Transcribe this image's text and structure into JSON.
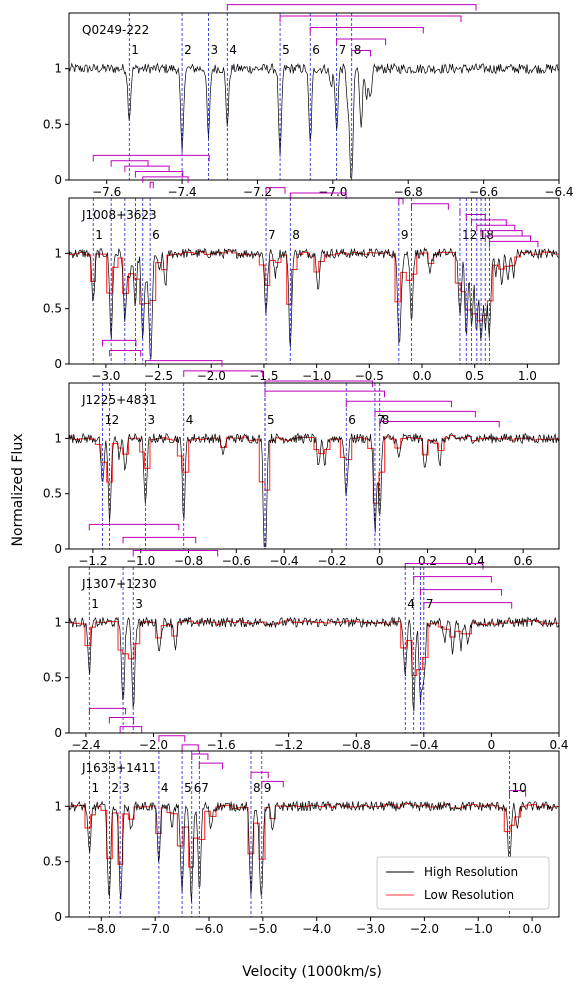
{
  "figure": {
    "ylabel": "Normalized Flux",
    "xlabel": "Velocity (1000km/s)",
    "colors": {
      "high": "#000000",
      "low": "#ff3333",
      "marker": "#1f1fd6",
      "bracket": "#bf00bf"
    }
  },
  "legend": {
    "position": "lower-right",
    "entries": [
      "High Resolution",
      "Low Resolution"
    ]
  },
  "chart_data": [
    {
      "type": "line",
      "title": "Q0249-222",
      "xlim": [
        -7.7,
        -6.4
      ],
      "ylim": [
        0,
        1.5
      ],
      "xticks": [
        -7.6,
        -7.4,
        -7.2,
        -7.0,
        -6.8,
        -6.6,
        -6.4
      ],
      "xtick_labels": [
        "−7.6",
        "−7.4",
        "−7.2",
        "−7.0",
        "−6.8",
        "−6.6",
        "−6.4"
      ],
      "yticks": [
        0,
        0.5,
        1
      ],
      "ytick_labels": [
        "0",
        "0.5",
        "1"
      ],
      "low_resolution": false,
      "systems": [
        {
          "label": "1",
          "x": -7.54,
          "end": -6.47
        },
        {
          "label": "2",
          "x": -7.4,
          "end": -6.52
        },
        {
          "label": "3",
          "x": -7.33,
          "end": -6.58
        },
        {
          "label": "4",
          "x": -7.28,
          "end": -6.62
        },
        {
          "label": "5",
          "x": -7.14,
          "end": -6.66
        },
        {
          "label": "6",
          "x": -7.06,
          "end": -6.76
        },
        {
          "label": "7",
          "x": -6.99,
          "end": -6.86
        },
        {
          "label": "8",
          "x": -6.95,
          "end": -6.9
        }
      ]
    },
    {
      "type": "line",
      "title": "J1008+3623",
      "xlim": [
        -3.35,
        1.3
      ],
      "ylim": [
        0,
        1.5
      ],
      "xticks": [
        -3.0,
        -2.5,
        -2.0,
        -1.5,
        -1.0,
        -0.5,
        0.0,
        0.5,
        1.0
      ],
      "xtick_labels": [
        "−3.0",
        "−2.5",
        "−2.0",
        "−1.5",
        "−1.0",
        "−0.5",
        "0.0",
        "0.5",
        "1.0"
      ],
      "yticks": [
        0,
        0.5,
        1
      ],
      "ytick_labels": [
        "0",
        "0.5",
        "1"
      ],
      "low_resolution": true,
      "systems": [
        {
          "label": "1",
          "x": -3.12,
          "end": -2.02
        },
        {
          "label": "",
          "x": -2.95,
          "end": -2.6
        },
        {
          "label": "",
          "x": -2.82,
          "end": -2.4
        },
        {
          "label": "",
          "x": -2.72,
          "end": -2.27
        },
        {
          "label": "",
          "x": -2.65,
          "end": -2.22
        },
        {
          "label": "6",
          "x": -2.58,
          "end": -2.55
        },
        {
          "label": "7",
          "x": -1.48,
          "end": -1.3
        },
        {
          "label": "8",
          "x": -1.25,
          "end": -0.72
        },
        {
          "label": "9",
          "x": -0.22,
          "end": -0.18
        },
        {
          "label": "",
          "x": -0.1,
          "end": 0.25
        },
        {
          "label": "12",
          "x": 0.36,
          "end": 0.36
        },
        {
          "label": "",
          "x": 0.42,
          "end": 0.6
        },
        {
          "label": "",
          "x": 0.47,
          "end": 0.8
        },
        {
          "label": "18",
          "x": 0.52,
          "end": 0.88
        },
        {
          "label": "",
          "x": 0.56,
          "end": 0.95
        },
        {
          "label": "",
          "x": 0.6,
          "end": 1.03
        },
        {
          "label": "",
          "x": 0.64,
          "end": 1.1
        }
      ]
    },
    {
      "type": "line",
      "title": "J1225+4831",
      "xlim": [
        -1.3,
        0.75
      ],
      "ylim": [
        0,
        1.5
      ],
      "xticks": [
        -1.2,
        -1.0,
        -0.8,
        -0.6,
        -0.4,
        -0.2,
        0,
        0.2,
        0.4,
        0.6
      ],
      "xtick_labels": [
        "−1.2",
        "−1.0",
        "−0.8",
        "−0.6",
        "−0.4",
        "−0.2",
        "0",
        "0.2",
        "0.4",
        "0.6"
      ],
      "yticks": [
        0,
        0.5,
        1
      ],
      "ytick_labels": [
        "0",
        "0.5",
        "1"
      ],
      "low_resolution": true,
      "systems": [
        {
          "label": "1",
          "x": -1.16,
          "end": -1.02
        },
        {
          "label": "2",
          "x": -1.13,
          "end": -1.0
        },
        {
          "label": "3",
          "x": -0.98,
          "end": -0.66
        },
        {
          "label": "4",
          "x": -0.82,
          "end": -0.49
        },
        {
          "label": "5",
          "x": -0.48,
          "end": -0.03
        },
        {
          "label": "",
          "x": -0.48,
          "end": 0.02
        },
        {
          "label": "6",
          "x": -0.14,
          "end": 0.3
        },
        {
          "label": "7",
          "x": -0.02,
          "end": 0.4
        },
        {
          "label": "8",
          "x": 0.0,
          "end": 0.5
        }
      ]
    },
    {
      "type": "line",
      "title": "J1307+1230",
      "xlim": [
        -2.5,
        0.4
      ],
      "ylim": [
        0,
        1.5
      ],
      "xticks": [
        -2.4,
        -2.0,
        -1.6,
        -1.2,
        -0.8,
        -0.4,
        0,
        0.4
      ],
      "xtick_labels": [
        "−2.4",
        "−2.0",
        "−1.6",
        "−1.2",
        "−0.8",
        "−0.4",
        "0",
        "0.4"
      ],
      "yticks": [
        0,
        0.5,
        1
      ],
      "ytick_labels": [
        "0",
        "0.5",
        "1"
      ],
      "low_resolution": true,
      "systems": [
        {
          "label": "1",
          "x": -2.38,
          "end": -1.85
        },
        {
          "label": "",
          "x": -2.18,
          "end": -1.75
        },
        {
          "label": "3",
          "x": -2.12,
          "end": -1.62
        },
        {
          "label": "4",
          "x": -0.51,
          "end": -0.05
        },
        {
          "label": "",
          "x": -0.46,
          "end": 0.0
        },
        {
          "label": "",
          "x": -0.42,
          "end": 0.06
        },
        {
          "label": "7",
          "x": -0.4,
          "end": 0.12
        }
      ]
    },
    {
      "type": "line",
      "title": "J1633+1411",
      "xlim": [
        -8.6,
        0.5
      ],
      "ylim": [
        0,
        1.5
      ],
      "xticks": [
        -8.0,
        -7.0,
        -6.0,
        -5.0,
        -4.0,
        -3.0,
        -2.0,
        -1.0,
        0.0
      ],
      "xtick_labels": [
        "−8.0",
        "−7.0",
        "−6.0",
        "−5.0",
        "−4.0",
        "−3.0",
        "−2.0",
        "−1.0",
        "0.0"
      ],
      "yticks": [
        0,
        0.5,
        1
      ],
      "ytick_labels": [
        "0",
        "0.5",
        "1"
      ],
      "low_resolution": true,
      "systems": [
        {
          "label": "1",
          "x": -8.22,
          "end": -7.55
        },
        {
          "label": "2",
          "x": -7.85,
          "end": -7.4
        },
        {
          "label": "3",
          "x": -7.65,
          "end": -7.25
        },
        {
          "label": "4",
          "x": -6.93,
          "end": -6.45
        },
        {
          "label": "5",
          "x": -6.5,
          "end": -6.2
        },
        {
          "label": "6",
          "x": -6.32,
          "end": -6.02
        },
        {
          "label": "7",
          "x": -6.18,
          "end": -5.75
        },
        {
          "label": "8",
          "x": -5.22,
          "end": -4.9
        },
        {
          "label": "9",
          "x": -5.02,
          "end": -4.62
        },
        {
          "label": "10",
          "x": -0.42,
          "end": -0.12
        }
      ]
    }
  ]
}
